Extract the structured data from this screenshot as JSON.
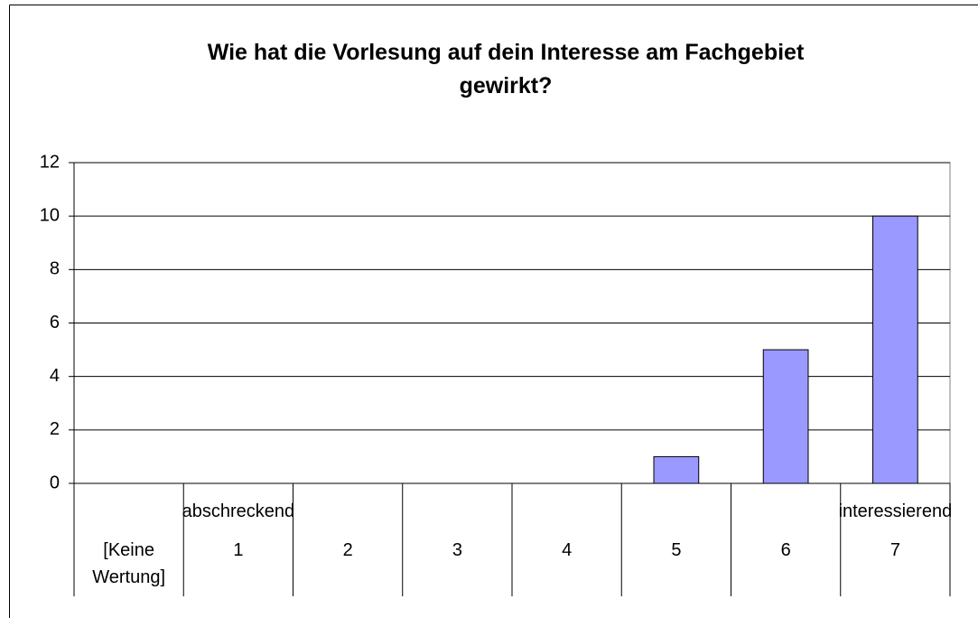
{
  "chart_data": {
    "type": "bar",
    "title": "Wie hat die Vorlesung auf dein Interesse am Fachgebiet gewirkt?",
    "categories": [
      "[Keine Wertung]",
      "1",
      "2",
      "3",
      "4",
      "5",
      "6",
      "7"
    ],
    "category_groups": [
      null,
      "abschreckend",
      null,
      null,
      null,
      null,
      null,
      "interessierend"
    ],
    "values": [
      0,
      0,
      0,
      0,
      0,
      1,
      5,
      10
    ],
    "color": "#9999ff",
    "ylim": [
      0,
      12
    ],
    "yticks": [
      0,
      2,
      4,
      6,
      8,
      10,
      12
    ],
    "grid": true
  }
}
